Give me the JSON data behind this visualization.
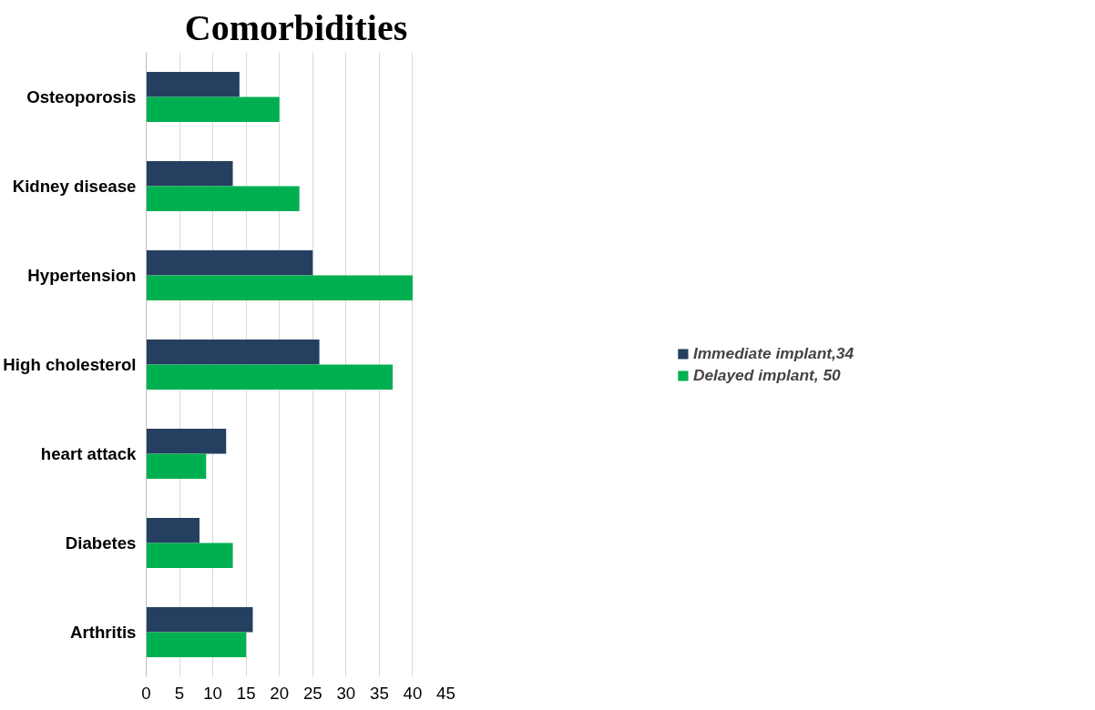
{
  "chart_data": {
    "type": "bar",
    "orientation": "horizontal",
    "title": "Comorbidities",
    "categories": [
      "Osteoporosis",
      "Kidney disease",
      "Hypertension",
      "High cholesterol",
      "heart attack",
      "Diabetes",
      "Arthritis"
    ],
    "series": [
      {
        "name": "Immediate implant,34",
        "color": "#243f60",
        "values": [
          14,
          13,
          25,
          26,
          12,
          8,
          16
        ]
      },
      {
        "name": "Delayed implant, 50",
        "color": "#00b050",
        "values": [
          20,
          23,
          40,
          37,
          9,
          13,
          15
        ]
      }
    ],
    "xlim": [
      0,
      45
    ],
    "xticks": [
      0,
      5,
      10,
      15,
      20,
      25,
      30,
      35,
      40,
      45
    ],
    "grid": "x",
    "legend": "right"
  }
}
